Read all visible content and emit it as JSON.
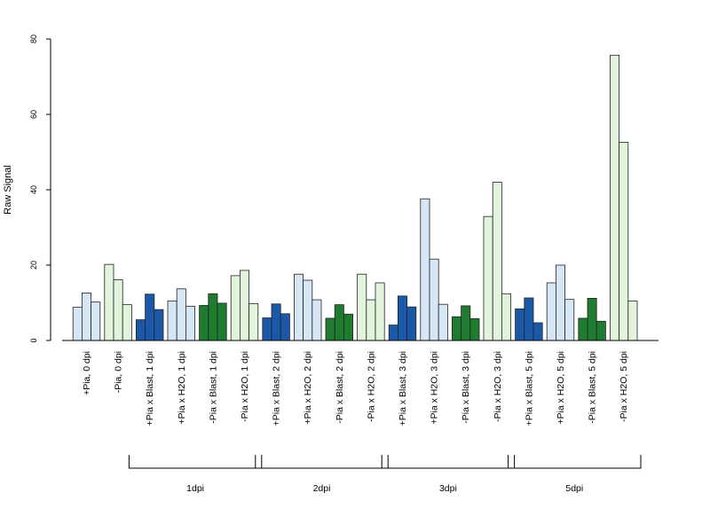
{
  "chart_data": {
    "type": "bar",
    "title": "",
    "ylabel": "Raw Signal",
    "xlabel": "",
    "ylim": [
      0,
      80
    ],
    "yticks": [
      0,
      20,
      40,
      60,
      80
    ],
    "grid": false,
    "categories": [
      "+Pia, 0 dpi",
      "-Pia, 0 dpi",
      "+Pia x Blast, 1 dpi",
      "+Pia x H2O, 1 dpi",
      "-Pia x Blast, 1 dpi",
      "-Pia x H2O, 1 dpi",
      "+Pia x Blast, 2 dpi",
      "+Pia x H2O, 2 dpi",
      "-Pia x Blast, 2 dpi",
      "-Pia x H2O, 2 dpi",
      "+Pia x Blast, 3 dpi",
      "+Pia x H2O, 3 dpi",
      "-Pia x Blast, 3 dpi",
      "-Pia x H2O, 3 dpi",
      "+Pia x Blast, 5 dpi",
      "+Pia x H2O, 5 dpi",
      "-Pia x Blast, 5 dpi",
      "-Pia x H2O, 5 dpi"
    ],
    "replicates_per_category": 3,
    "values": [
      [
        8.8,
        12.6,
        10.2
      ],
      [
        20.2,
        16.1,
        9.5
      ],
      [
        5.5,
        12.3,
        8.2
      ],
      [
        10.5,
        13.7,
        9.1
      ],
      [
        9.3,
        12.4,
        9.9
      ],
      [
        17.2,
        18.6,
        9.8
      ],
      [
        6.0,
        9.7,
        7.1
      ],
      [
        17.6,
        16.0,
        10.8
      ],
      [
        5.9,
        9.5,
        7.0
      ],
      [
        17.6,
        10.8,
        15.3
      ],
      [
        4.1,
        11.8,
        8.9
      ],
      [
        37.6,
        21.6,
        9.6
      ],
      [
        6.3,
        9.2,
        5.8
      ],
      [
        32.9,
        42.0,
        12.4
      ],
      [
        8.4,
        11.3,
        4.7
      ],
      [
        15.3,
        20.0,
        10.9
      ],
      [
        5.9,
        11.2,
        5.1
      ],
      [
        75.7,
        52.6,
        10.5
      ]
    ],
    "category_colors": [
      "#d6e6f5",
      "#e3f4dc",
      "#1b59a8",
      "#d6e6f5",
      "#1e7b30",
      "#e3f4dc",
      "#1b59a8",
      "#d6e6f5",
      "#1e7b30",
      "#e3f4dc",
      "#1b59a8",
      "#d6e6f5",
      "#1e7b30",
      "#e3f4dc",
      "#1b59a8",
      "#d6e6f5",
      "#1e7b30",
      "#e3f4dc"
    ],
    "groups": [
      {
        "label": "1dpi",
        "first_category": 2,
        "last_category": 5
      },
      {
        "label": "2dpi",
        "first_category": 6,
        "last_category": 9
      },
      {
        "label": "3dpi",
        "first_category": 10,
        "last_category": 13
      },
      {
        "label": "5dpi",
        "first_category": 14,
        "last_category": 17
      }
    ],
    "colors": {
      "light_blue": "#d6e6f5",
      "light_green": "#e3f4dc",
      "dark_blue": "#1b59a8",
      "dark_green": "#1e7b30"
    }
  }
}
